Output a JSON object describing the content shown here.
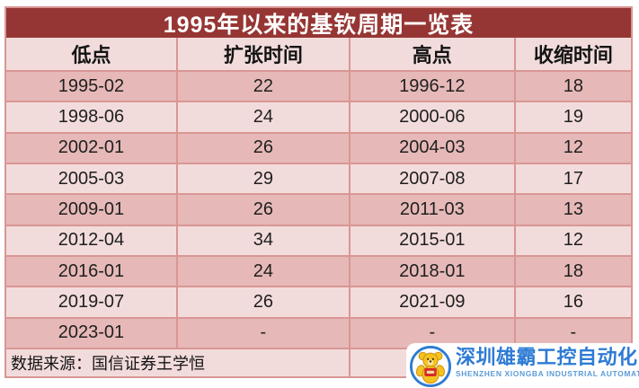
{
  "title": "1995年以来的基钦周期一览表",
  "table": {
    "columns": [
      "低点",
      "扩张时间",
      "高点",
      "收缩时间"
    ],
    "rows": [
      [
        "1995-02",
        "22",
        "1996-12",
        "18"
      ],
      [
        "1998-06",
        "24",
        "2000-06",
        "19"
      ],
      [
        "2002-01",
        "26",
        "2004-03",
        "12"
      ],
      [
        "2005-03",
        "29",
        "2007-08",
        "17"
      ],
      [
        "2009-01",
        "26",
        "2011-03",
        "13"
      ],
      [
        "2012-04",
        "34",
        "2015-01",
        "12"
      ],
      [
        "2016-01",
        "24",
        "2018-01",
        "18"
      ],
      [
        "2019-07",
        "26",
        "2021-09",
        "16"
      ],
      [
        "2023-01",
        "-",
        "-",
        "-"
      ]
    ],
    "footer": "数据来源：国信证券王学恒"
  },
  "watermark": {
    "brand_cn": "深圳雄霸工控自动化",
    "brand_en": "SHENZHEN XIONGBA INDUSTRIAL AUTOMATION"
  },
  "colors": {
    "title_bg": "#963634",
    "row_dark": "#E6B9B8",
    "row_light": "#F2DCDB",
    "border": "#D99694",
    "brand_blue": "#2E7BD4",
    "bear_yellow": "#F6C21F",
    "bear_red": "#D42B28"
  },
  "chart_data": {
    "type": "table",
    "title": "1995年以来的基钦周期一览表",
    "columns": [
      "低点",
      "扩张时间",
      "高点",
      "收缩时间"
    ],
    "rows": [
      {
        "low_point": "1995-02",
        "expansion_months": 22,
        "high_point": "1996-12",
        "contraction_months": 18
      },
      {
        "low_point": "1998-06",
        "expansion_months": 24,
        "high_point": "2000-06",
        "contraction_months": 19
      },
      {
        "low_point": "2002-01",
        "expansion_months": 26,
        "high_point": "2004-03",
        "contraction_months": 12
      },
      {
        "low_point": "2005-03",
        "expansion_months": 29,
        "high_point": "2007-08",
        "contraction_months": 17
      },
      {
        "low_point": "2009-01",
        "expansion_months": 26,
        "high_point": "2011-03",
        "contraction_months": 13
      },
      {
        "low_point": "2012-04",
        "expansion_months": 34,
        "high_point": "2015-01",
        "contraction_months": 12
      },
      {
        "low_point": "2016-01",
        "expansion_months": 24,
        "high_point": "2018-01",
        "contraction_months": 18
      },
      {
        "low_point": "2019-07",
        "expansion_months": 26,
        "high_point": "2021-09",
        "contraction_months": 16
      },
      {
        "low_point": "2023-01",
        "expansion_months": null,
        "high_point": null,
        "contraction_months": null
      }
    ],
    "source": "数据来源：国信证券王学恒"
  }
}
